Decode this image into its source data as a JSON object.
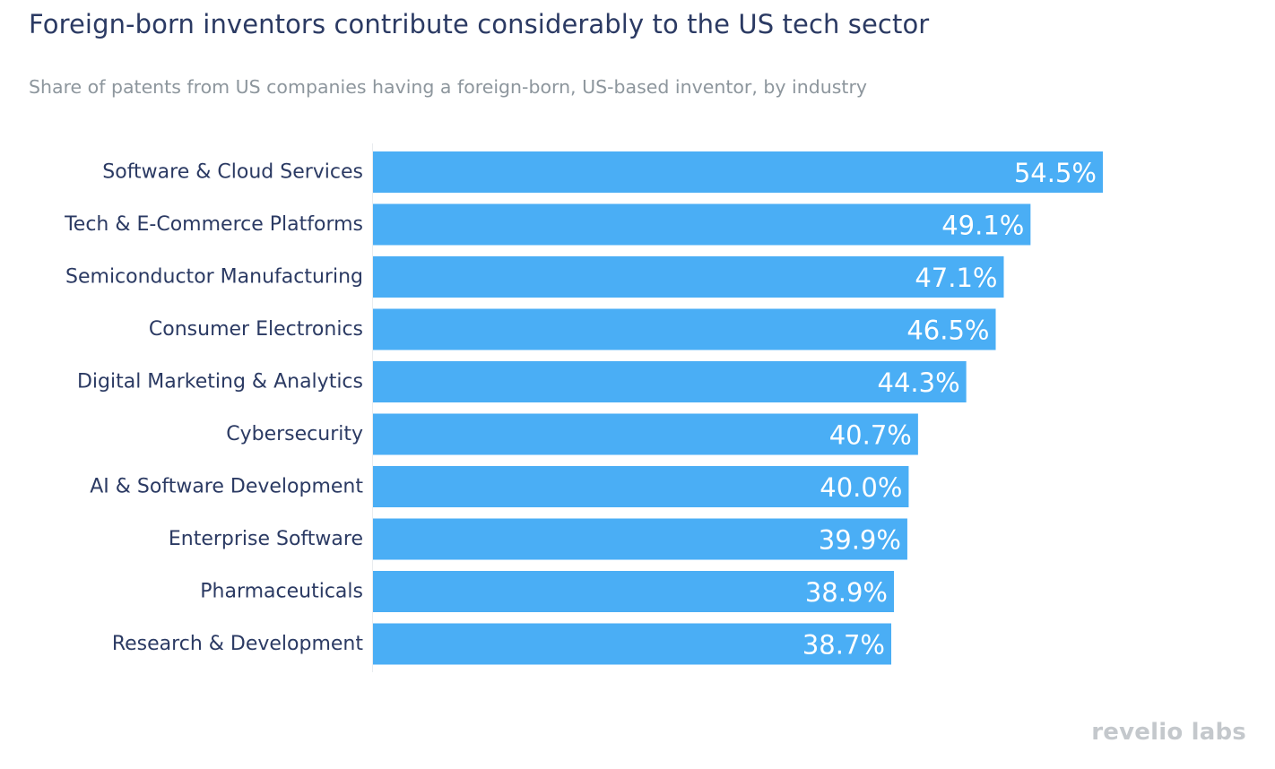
{
  "header": {
    "title": "Foreign-born inventors contribute considerably to the US tech sector",
    "subtitle": "Share of patents from US companies having a foreign-born, US-based inventor, by industry"
  },
  "branding": {
    "logo_text": "revelio labs"
  },
  "colors": {
    "bar": "#4aaef5",
    "label_text": "#2b3a63",
    "value_text": "#ffffff",
    "axis_line": "#e9ecef"
  },
  "chart_data": {
    "type": "bar",
    "orientation": "horizontal",
    "title": "Foreign-born inventors contribute considerably to the US tech sector",
    "subtitle": "Share of patents from US companies having a foreign-born, US-based inventor, by industry",
    "categories": [
      "Software & Cloud Services",
      "Tech & E-Commerce Platforms",
      "Semiconductor Manufacturing",
      "Consumer Electronics",
      "Digital Marketing & Analytics",
      "Cybersecurity",
      "AI & Software Development",
      "Enterprise Software",
      "Pharmaceuticals",
      "Research & Development"
    ],
    "values": [
      54.5,
      49.1,
      47.1,
      46.5,
      44.3,
      40.7,
      40.0,
      39.9,
      38.9,
      38.7
    ],
    "value_labels": [
      "54.5%",
      "49.1%",
      "47.1%",
      "46.5%",
      "44.3%",
      "40.7%",
      "40.0%",
      "39.9%",
      "38.9%",
      "38.7%"
    ],
    "unit": "%",
    "xlim": [
      0,
      54.5
    ],
    "xlabel": "",
    "ylabel": "",
    "grid": false,
    "legend": "none"
  }
}
